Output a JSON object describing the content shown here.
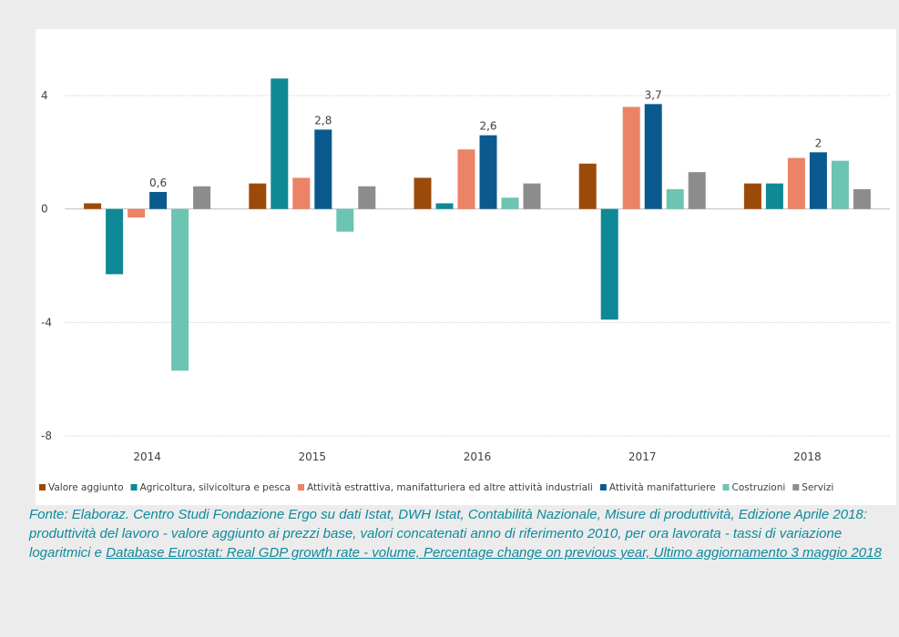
{
  "chart_data": {
    "type": "bar",
    "categories": [
      "2014",
      "2015",
      "2016",
      "2017",
      "2018"
    ],
    "ylim": [
      -8,
      4
    ],
    "yticks": [
      4,
      0,
      -4,
      -8
    ],
    "grid": true,
    "legend_position": "bottom",
    "series": [
      {
        "name": "Valore aggiunto",
        "color": "#9c4a0a",
        "values": [
          0.2,
          0.9,
          1.1,
          1.6,
          0.9
        ]
      },
      {
        "name": "Agricoltura, silvicoltura e pesca",
        "color": "#0e8995",
        "values": [
          -2.3,
          4.6,
          0.2,
          -3.9,
          0.9
        ]
      },
      {
        "name": "Attività estrattiva, manifatturiera ed altre attività industriali",
        "color": "#ec8266",
        "values": [
          -0.3,
          1.1,
          2.1,
          3.6,
          1.8
        ]
      },
      {
        "name": "Attività manifatturiere",
        "color": "#0b5a8f",
        "values": [
          0.6,
          2.8,
          2.6,
          3.7,
          2.0
        ]
      },
      {
        "name": "Costruzioni",
        "color": "#6cc4b2",
        "values": [
          -5.7,
          -0.8,
          0.4,
          0.7,
          1.7
        ]
      },
      {
        "name": "Servizi",
        "color": "#8c8c8c",
        "values": [
          0.8,
          0.8,
          0.9,
          1.3,
          0.7
        ]
      }
    ],
    "data_labels": [
      {
        "series": "Attività manifatturiere",
        "category": "2014",
        "text": "0,6"
      },
      {
        "series": "Attività manifatturiere",
        "category": "2015",
        "text": "2,8"
      },
      {
        "series": "Attività manifatturiere",
        "category": "2016",
        "text": "2,6"
      },
      {
        "series": "Attività manifatturiere",
        "category": "2017",
        "text": "3,7"
      },
      {
        "series": "Attività manifatturiere",
        "category": "2018",
        "text": "2"
      }
    ]
  },
  "caption": {
    "text_plain": "Fonte: Elaboraz. Centro Studi Fondazione Ergo su dati Istat, DWH Istat, Contabilità Nazionale, Misure di produttività, Edizione Aprile 2018: produttività del lavoro - valore aggiunto ai prezzi base, valori concatenati anno di riferimento 2010, per ora lavorata - tassi di variazione logaritmici e ",
    "link_text": "Database Eurostat: Real GDP growth rate - volume, Percentage change on previous year, Ultimo aggiornamento 3 maggio 2018",
    "color": "#0f8a9c"
  }
}
